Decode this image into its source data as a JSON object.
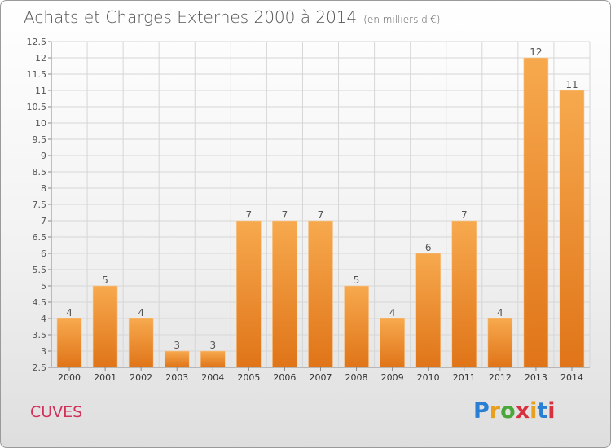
{
  "title": "Achats et Charges Externes 2000 à 2014",
  "unit": "(en milliers d'€)",
  "location": "CUVES",
  "logo": {
    "letters": [
      "P",
      "r",
      "o",
      "x",
      "i",
      "t",
      "i"
    ],
    "colors": [
      "#2a7fd4",
      "#e8a020",
      "#4aa83a",
      "#d9303f",
      "#e8a020",
      "#2a7fd4",
      "#d9303f"
    ]
  },
  "colors": {
    "bar_light": "#f7a94e",
    "bar_dark": "#e07418",
    "grid": "#d6d6d6",
    "axis_text": "#555555"
  },
  "chart_data": {
    "type": "bar",
    "categories": [
      "2000",
      "2001",
      "2002",
      "2003",
      "2004",
      "2005",
      "2006",
      "2007",
      "2008",
      "2009",
      "2010",
      "2011",
      "2012",
      "2013",
      "2014"
    ],
    "values": [
      4,
      5,
      4,
      3,
      3,
      7,
      7,
      7,
      5,
      4,
      6,
      7,
      4,
      12,
      11
    ],
    "value_labels": [
      "4",
      "5",
      "4",
      "3",
      "3",
      "7",
      "7",
      "7",
      "5",
      "4",
      "6",
      "7",
      "4",
      "12",
      "11"
    ],
    "ylim": [
      2.5,
      12.5
    ],
    "yticks": [
      "2.5",
      "3",
      "3.5",
      "4",
      "4.5",
      "5",
      "5.5",
      "6",
      "6.5",
      "7",
      "7.5",
      "8",
      "8.5",
      "9",
      "9.5",
      "10",
      "10.5",
      "11",
      "11.5",
      "12",
      "12.5"
    ],
    "grid": true
  }
}
